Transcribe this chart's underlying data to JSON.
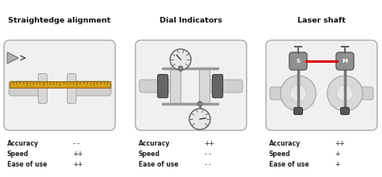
{
  "titles": [
    "Straightedge alignment",
    "Dial Indicators",
    "Laser shaft"
  ],
  "labels1": [
    [
      "Accuracy",
      "- -"
    ],
    [
      "Speed",
      "++"
    ],
    [
      "Ease of use",
      "++"
    ]
  ],
  "labels2": [
    [
      "Accuracy",
      "++"
    ],
    [
      "Speed",
      "- -"
    ],
    [
      "Ease of use",
      "- -"
    ]
  ],
  "labels3": [
    [
      "Accuracy",
      "++"
    ],
    [
      "Speed",
      "+"
    ],
    [
      "Ease of use",
      "+"
    ]
  ],
  "ruler_color": "#d4a017",
  "ruler_border": "#8B6914",
  "shaft_color": "#d0d0d0",
  "shaft_border": "#aaaaaa",
  "flange1_color": "#e0e0e0",
  "flange1_border": "#aaaaaa",
  "panel_bg": "#f0f0f0",
  "panel_border": "#aaaaaa",
  "dial_dark": "#707070",
  "dial_light": "#d8d8d8",
  "dial_face": "#e8e8e8",
  "laser_red": "#dd0000",
  "laser_device_color": "#888888",
  "bg_color": "#ffffff"
}
